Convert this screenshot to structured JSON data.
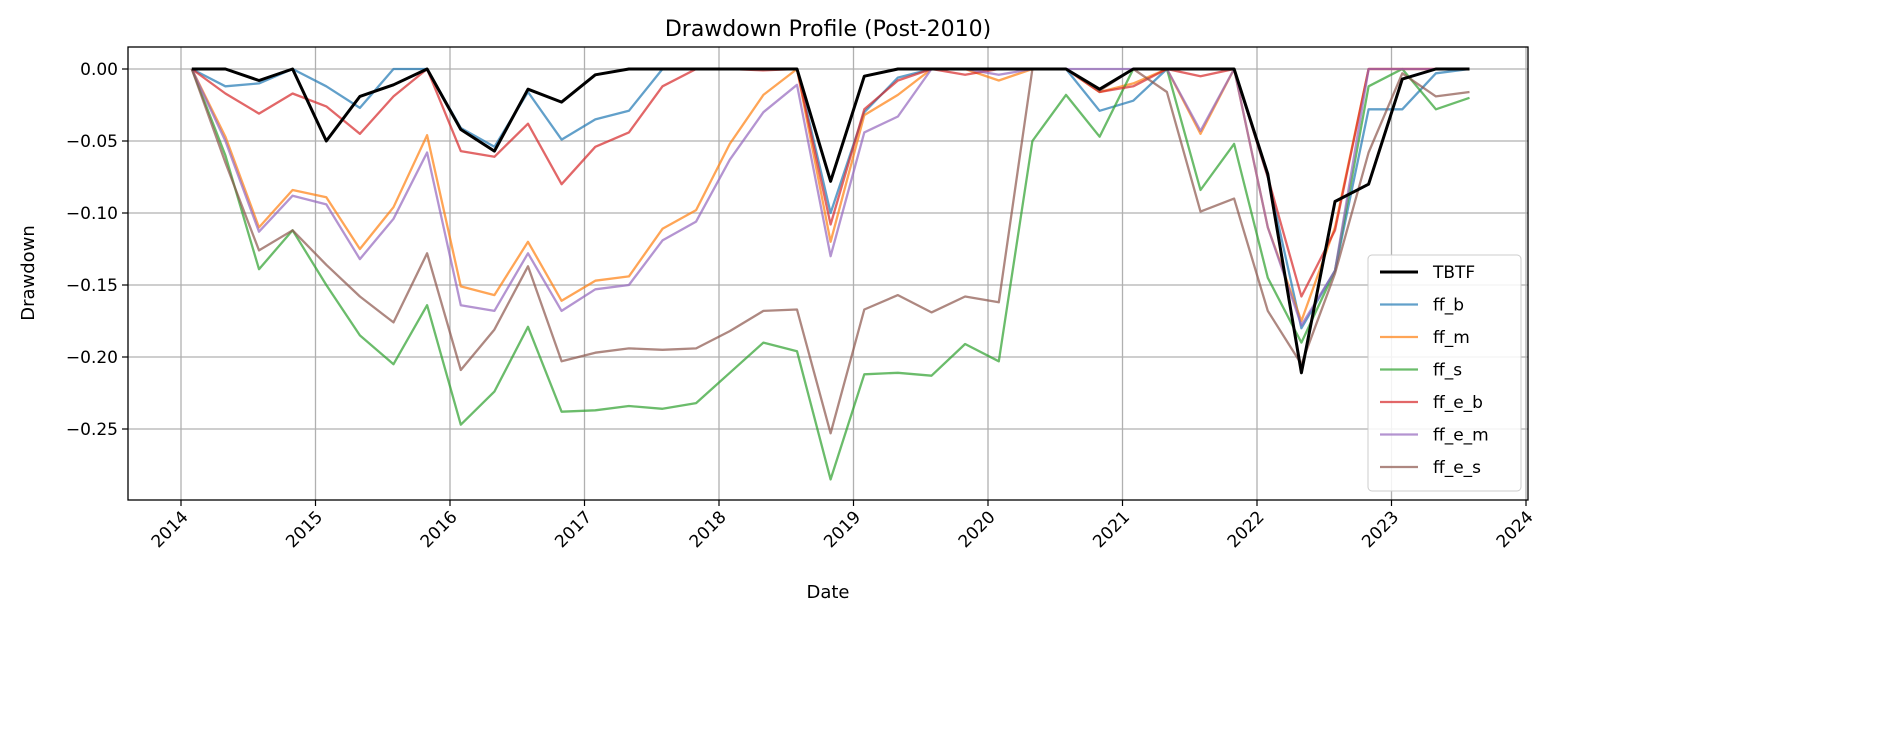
{
  "chart_data": {
    "type": "line",
    "title": "Drawdown Profile (Post-2010)",
    "xlabel": "Date",
    "ylabel": "Drawdown",
    "xlim": [
      2013.6,
      2024.0
    ],
    "ylim": [
      -0.299,
      0.0153
    ],
    "grid": true,
    "legend_position": "lower-right",
    "x_ticks": [
      2014,
      2015,
      2016,
      2017,
      2018,
      2019,
      2020,
      2021,
      2022,
      2023,
      2024
    ],
    "x_tick_labels": [
      "2014",
      "2015",
      "2016",
      "2017",
      "2018",
      "2019",
      "2020",
      "2021",
      "2022",
      "2023",
      "2024"
    ],
    "y_ticks": [
      0,
      -0.05,
      -0.1,
      -0.15,
      -0.2,
      -0.25
    ],
    "y_tick_labels": [
      "0.00",
      "−0.05",
      "−0.10",
      "−0.15",
      "−0.20",
      "−0.25"
    ],
    "x": [
      2014.08,
      2014.33,
      2014.58,
      2014.83,
      2015.08,
      2015.33,
      2015.58,
      2015.83,
      2016.08,
      2016.33,
      2016.58,
      2016.83,
      2017.08,
      2017.33,
      2017.58,
      2017.83,
      2018.08,
      2018.33,
      2018.58,
      2018.83,
      2019.08,
      2019.33,
      2019.58,
      2019.83,
      2020.08,
      2020.33,
      2020.58,
      2020.83,
      2021.08,
      2021.33,
      2021.58,
      2021.83,
      2022.08,
      2022.33,
      2022.58,
      2022.83,
      2023.08,
      2023.33,
      2023.58
    ],
    "series": [
      {
        "name": "TBTF",
        "color": "#000000",
        "width": 3,
        "opacity": 1,
        "values": [
          0,
          0,
          -0.008,
          0,
          -0.05,
          -0.019,
          -0.011,
          0,
          -0.042,
          -0.057,
          -0.014,
          -0.023,
          -0.004,
          0,
          0,
          0,
          0,
          0,
          0,
          -0.078,
          -0.005,
          0,
          0,
          0,
          0,
          0,
          0,
          -0.014,
          0,
          0,
          0,
          0,
          -0.073,
          -0.211,
          -0.092,
          -0.08,
          -0.007,
          0,
          0
        ]
      },
      {
        "name": "ff_b",
        "color": "#1f77b4",
        "width": 2.3,
        "opacity": 0.7,
        "values": [
          0,
          -0.012,
          -0.01,
          0,
          -0.012,
          -0.027,
          0,
          0,
          -0.041,
          -0.054,
          -0.016,
          -0.049,
          -0.035,
          -0.029,
          0,
          0,
          0,
          0,
          0,
          -0.1,
          -0.03,
          -0.006,
          0,
          0,
          0,
          0,
          0,
          -0.029,
          -0.022,
          0,
          0,
          0,
          -0.075,
          -0.18,
          -0.14,
          -0.028,
          -0.028,
          -0.003,
          0
        ]
      },
      {
        "name": "ff_m",
        "color": "#ff7f0e",
        "width": 2.3,
        "opacity": 0.7,
        "values": [
          0,
          -0.047,
          -0.11,
          -0.084,
          -0.089,
          -0.125,
          -0.096,
          -0.046,
          -0.151,
          -0.157,
          -0.12,
          -0.161,
          -0.147,
          -0.144,
          -0.111,
          -0.098,
          -0.052,
          -0.018,
          0,
          -0.12,
          -0.032,
          -0.018,
          0,
          0,
          -0.008,
          0,
          0,
          -0.016,
          -0.01,
          0,
          -0.045,
          0,
          -0.11,
          -0.175,
          -0.11,
          0,
          0,
          0,
          0
        ]
      },
      {
        "name": "ff_s",
        "color": "#2ca02c",
        "width": 2.3,
        "opacity": 0.7,
        "values": [
          0,
          -0.06,
          -0.139,
          -0.112,
          -0.15,
          -0.185,
          -0.205,
          -0.164,
          -0.247,
          -0.224,
          -0.179,
          -0.238,
          -0.237,
          -0.234,
          -0.236,
          -0.232,
          -0.211,
          -0.19,
          -0.196,
          -0.285,
          -0.212,
          -0.211,
          -0.213,
          -0.191,
          -0.203,
          -0.05,
          -0.018,
          -0.047,
          0,
          0,
          -0.084,
          -0.052,
          -0.145,
          -0.19,
          -0.14,
          -0.012,
          0,
          -0.028,
          -0.02
        ]
      },
      {
        "name": "ff_e_b",
        "color": "#d62728",
        "width": 2.3,
        "opacity": 0.7,
        "values": [
          0,
          -0.017,
          -0.031,
          -0.017,
          -0.026,
          -0.045,
          -0.019,
          0,
          -0.057,
          -0.061,
          -0.038,
          -0.08,
          -0.054,
          -0.044,
          -0.012,
          0,
          0,
          -0.001,
          0,
          -0.108,
          -0.028,
          -0.008,
          0,
          -0.004,
          0,
          0,
          0,
          -0.016,
          -0.012,
          0,
          -0.005,
          0,
          -0.075,
          -0.158,
          -0.112,
          0,
          0,
          0,
          0
        ]
      },
      {
        "name": "ff_e_m",
        "color": "#9467bd",
        "width": 2.3,
        "opacity": 0.7,
        "values": [
          0,
          -0.05,
          -0.113,
          -0.088,
          -0.094,
          -0.132,
          -0.104,
          -0.058,
          -0.164,
          -0.168,
          -0.128,
          -0.168,
          -0.153,
          -0.15,
          -0.119,
          -0.106,
          -0.063,
          -0.03,
          -0.011,
          -0.13,
          -0.044,
          -0.033,
          0,
          0,
          -0.004,
          0,
          0,
          0,
          0,
          0,
          -0.043,
          0,
          -0.11,
          -0.178,
          -0.14,
          0,
          0,
          0,
          0
        ]
      },
      {
        "name": "ff_e_s",
        "color": "#8c564b",
        "width": 2.3,
        "opacity": 0.7,
        "values": [
          0,
          -0.065,
          -0.126,
          -0.112,
          -0.136,
          -0.158,
          -0.176,
          -0.128,
          -0.209,
          -0.181,
          -0.137,
          -0.203,
          -0.197,
          -0.194,
          -0.195,
          -0.194,
          -0.182,
          -0.168,
          -0.167,
          -0.253,
          -0.167,
          -0.157,
          -0.169,
          -0.158,
          -0.162,
          0,
          0,
          -0.015,
          0,
          -0.016,
          -0.099,
          -0.09,
          -0.168,
          -0.205,
          -0.142,
          -0.058,
          -0.003,
          -0.019,
          -0.016
        ]
      }
    ]
  }
}
